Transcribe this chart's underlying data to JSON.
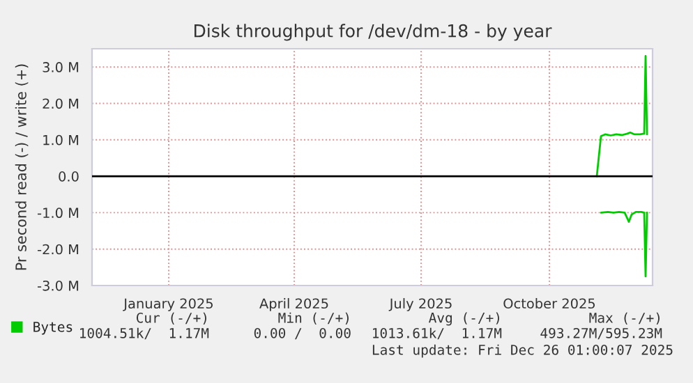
{
  "chart_data": {
    "type": "line",
    "title": "Disk throughput for /dev/dm-18 - by year",
    "ylabel": "Pr second read (-) / write (+)",
    "xlim": [
      "2024-11-07",
      "2025-12-14"
    ],
    "xticks": [
      {
        "value": "2025-01-01",
        "label": "January 2025"
      },
      {
        "value": "2025-04-01",
        "label": "April 2025"
      },
      {
        "value": "2025-07-01",
        "label": "July 2025"
      },
      {
        "value": "2025-10-01",
        "label": "October 2025"
      }
    ],
    "ylim": [
      -3000000,
      3500000
    ],
    "yticks": [
      {
        "value": -3000000,
        "label": "-3.0 M"
      },
      {
        "value": -2000000,
        "label": "-2.0 M"
      },
      {
        "value": -1000000,
        "label": "-1.0 M"
      },
      {
        "value": 0,
        "label": "0.0"
      },
      {
        "value": 1000000,
        "label": "1.0 M"
      },
      {
        "value": 2000000,
        "label": "2.0 M"
      },
      {
        "value": 3000000,
        "label": "3.0 M"
      }
    ],
    "grid": true,
    "legend": "bottom left",
    "ref_lines": [
      {
        "axis": "y",
        "value": 0,
        "color": "#000000"
      }
    ],
    "series": [
      {
        "name": "Bytes",
        "color": "#00cc00",
        "x": [
          "2025-11-04",
          "2025-11-07",
          "2025-11-10",
          "2025-11-14",
          "2025-11-18",
          "2025-11-22",
          "2025-11-26",
          "2025-11-28",
          "2025-12-01",
          "2025-12-05",
          "2025-12-08",
          "2025-12-09",
          "2025-12-10"
        ],
        "values": [
          0,
          1100000,
          1150000,
          1120000,
          1150000,
          1130000,
          1170000,
          1200000,
          1150000,
          1150000,
          1170000,
          3300000,
          1150000
        ]
      },
      {
        "color": "#00cc00",
        "x": [
          "2025-11-07",
          "2025-11-12",
          "2025-11-16",
          "2025-11-20",
          "2025-11-24",
          "2025-11-27",
          "2025-11-29",
          "2025-12-02",
          "2025-12-06",
          "2025-12-08",
          "2025-12-09",
          "2025-12-10"
        ],
        "values": [
          -1000000,
          -980000,
          -1000000,
          -980000,
          -1000000,
          -1250000,
          -1050000,
          -980000,
          -980000,
          -1000000,
          -2750000,
          -1000000
        ]
      }
    ],
    "annotations": [
      "Cur (-/+)",
      "Min (-/+)",
      "Avg (-/+)",
      "Max (-/+)",
      "1004.51k/  1.17M",
      "0.00 /  0.00",
      "1013.61k/  1.17M",
      "493.27M/595.23M",
      "Last update: Fri Dec 26 01:00:07 2025"
    ]
  }
}
